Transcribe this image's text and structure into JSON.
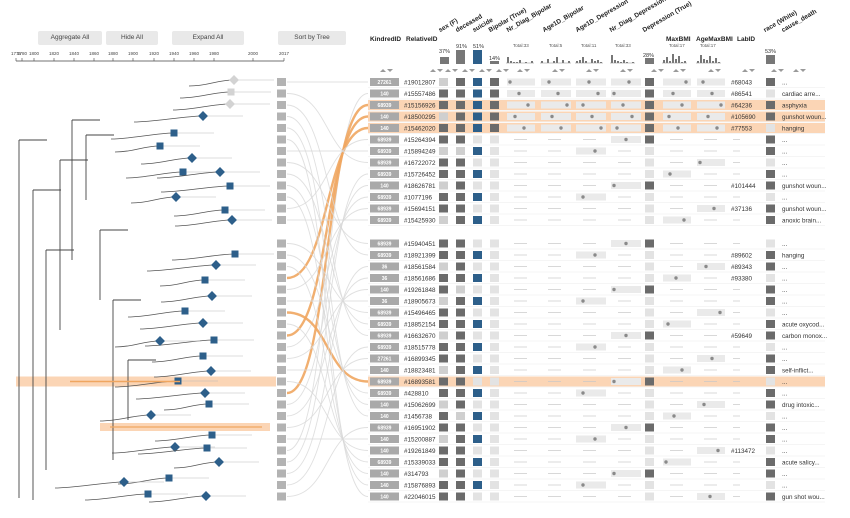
{
  "toolbar": {
    "aggregate_all": "Aggregate All",
    "hide_all": "Hide All",
    "expand_all": "Expand All",
    "sort_by_tree": "Sort by Tree"
  },
  "axis": {
    "ticks": [
      "1775",
      "1780",
      "1800",
      "1820",
      "1840",
      "1860",
      "1880",
      "1900",
      "1920",
      "1940",
      "1960",
      "1980",
      "2000",
      "2017"
    ]
  },
  "columns": {
    "kindred": "KindredID",
    "relative": "RelativeID",
    "sex": "sex (F)",
    "deceased": "deceased",
    "suicide": "suicide",
    "bipolar": "Bipolar (True)",
    "nr_bipolar": "Nr_Diag_Bipolar",
    "age_bipolar": "Age1D_Bipolar",
    "age_depression": "Age1D_Depression",
    "nr_depression": "Nr_Diag_Depression",
    "depression": "Depression (True)",
    "maxbmi": "MaxBMI",
    "agemaxbmi": "AgeMaxBMI",
    "labid": "LabID",
    "race": "race (White)",
    "cause": "cause_death"
  },
  "summary": {
    "sex_pct": "37%",
    "deceased_pct": "91%",
    "suicide_pct": "51%",
    "bipolar_pct": "14%",
    "nr_bipolar_total": "Total:33",
    "age_bipolar_total": "Total:5",
    "age_depression_total": "Total:11",
    "nr_depression_total": "Total:33",
    "depression_pct": "28%",
    "maxbmi_total": "Total:17",
    "agemaxbmi_total": "Total:17",
    "race_pct": "53%"
  },
  "colors": {
    "highlight": "#fbd5b5",
    "orange_link": "#f0a660",
    "suicide_blue": "#2d5f8a",
    "gray_cell": "#6b6b6b",
    "light_cell": "#cfcfcf",
    "kindred_bg": "#a9a9a9",
    "tree_node": "#2d5f8a"
  },
  "rows": [
    {
      "kindred": "27261",
      "relative": "#19012807",
      "labid": "#68043",
      "cause": "...",
      "hl": false
    },
    {
      "kindred": "140",
      "relative": "#15557486",
      "labid": "#86541",
      "cause": "cardiac arre...",
      "hl": false
    },
    {
      "kindred": "68939",
      "relative": "#15156926",
      "labid": "#64236",
      "cause": "asphyxia",
      "hl": true
    },
    {
      "kindred": "140",
      "relative": "#18500295",
      "labid": "#105690",
      "cause": "gunshot woun...",
      "hl": true
    },
    {
      "kindred": "140",
      "relative": "#15462020",
      "labid": "#77553",
      "cause": "hanging",
      "hl": true
    },
    {
      "kindred": "68939",
      "relative": "#15264394",
      "labid": "",
      "cause": "...",
      "hl": false
    },
    {
      "kindred": "68939",
      "relative": "#15894249",
      "labid": "",
      "cause": "...",
      "hl": false
    },
    {
      "kindred": "68939",
      "relative": "#16722072",
      "labid": "",
      "cause": "...",
      "hl": false
    },
    {
      "kindred": "68939",
      "relative": "#15726452",
      "labid": "",
      "cause": "...",
      "hl": false
    },
    {
      "kindred": "140",
      "relative": "#18626781",
      "labid": "#101444",
      "cause": "gunshot woun...",
      "hl": false
    },
    {
      "kindred": "68939",
      "relative": "#1077196",
      "labid": "",
      "cause": "...",
      "hl": false
    },
    {
      "kindred": "68939",
      "relative": "#15694151",
      "labid": "#37136",
      "cause": "gunshot woun...",
      "hl": false
    },
    {
      "kindred": "68939",
      "relative": "#15425930",
      "labid": "",
      "cause": "anoxic brain...",
      "hl": false
    },
    {
      "kindred": "68939",
      "relative": "#15940451",
      "labid": "",
      "cause": "...",
      "hl": false
    },
    {
      "kindred": "68939",
      "relative": "#18921399",
      "labid": "#89602",
      "cause": "hanging",
      "hl": false
    },
    {
      "kindred": "36",
      "relative": "#18561584",
      "labid": "#89343",
      "cause": "...",
      "hl": false
    },
    {
      "kindred": "36",
      "relative": "#18561686",
      "labid": "#93380",
      "cause": "...",
      "hl": false
    },
    {
      "kindred": "140",
      "relative": "#19261848",
      "labid": "",
      "cause": "...",
      "hl": false
    },
    {
      "kindred": "36",
      "relative": "#18905673",
      "labid": "",
      "cause": "...",
      "hl": false
    },
    {
      "kindred": "68939",
      "relative": "#15496465",
      "labid": "",
      "cause": "...",
      "hl": false
    },
    {
      "kindred": "68939",
      "relative": "#18852154",
      "labid": "",
      "cause": "acute oxycod...",
      "hl": false
    },
    {
      "kindred": "68939",
      "relative": "#16632670",
      "labid": "#59649",
      "cause": "carbon monox...",
      "hl": false
    },
    {
      "kindred": "68939",
      "relative": "#18515778",
      "labid": "",
      "cause": "...",
      "hl": false
    },
    {
      "kindred": "27261",
      "relative": "#16899345",
      "labid": "",
      "cause": "...",
      "hl": false
    },
    {
      "kindred": "140",
      "relative": "#18823481",
      "labid": "",
      "cause": "self-inflict...",
      "hl": false
    },
    {
      "kindred": "68939",
      "relative": "#16893581",
      "labid": "",
      "cause": "...",
      "hl": true
    },
    {
      "kindred": "68939",
      "relative": "#428810",
      "labid": "",
      "cause": "...",
      "hl": false
    },
    {
      "kindred": "140",
      "relative": "#15062699",
      "labid": "",
      "cause": "drug intoxic...",
      "hl": false
    },
    {
      "kindred": "140",
      "relative": "#1456738",
      "labid": "",
      "cause": "...",
      "hl": false
    },
    {
      "kindred": "68939",
      "relative": "#16951902",
      "labid": "",
      "cause": "...",
      "hl": false
    },
    {
      "kindred": "140",
      "relative": "#15200887",
      "labid": "",
      "cause": "...",
      "hl": false
    },
    {
      "kindred": "140",
      "relative": "#19261849",
      "labid": "#113472",
      "cause": "...",
      "hl": false
    },
    {
      "kindred": "68939",
      "relative": "#15339033",
      "labid": "",
      "cause": "acute salicy...",
      "hl": false
    },
    {
      "kindred": "140",
      "relative": "#314793",
      "labid": "",
      "cause": "...",
      "hl": false
    },
    {
      "kindred": "140",
      "relative": "#15876893",
      "labid": "",
      "cause": "...",
      "hl": false
    },
    {
      "kindred": "140",
      "relative": "#22046015",
      "labid": "",
      "cause": "gun shot wou...",
      "hl": false
    }
  ]
}
